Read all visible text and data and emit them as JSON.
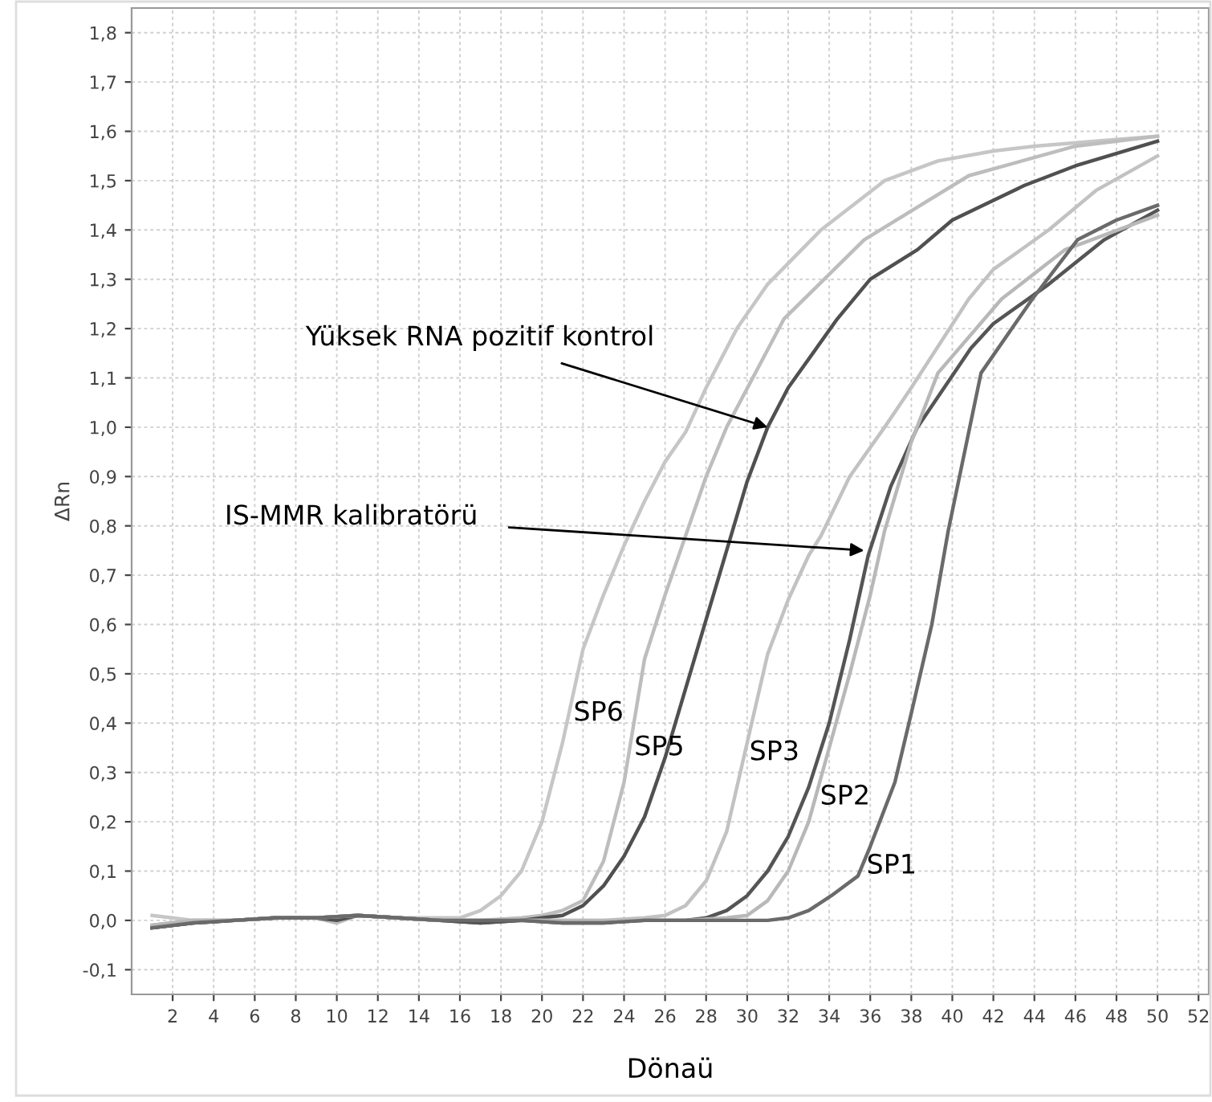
{
  "chart_data": {
    "type": "line",
    "xlabel": "Dönaü",
    "ylabel": "ΔRn",
    "xlim": [
      0,
      52.5
    ],
    "ylim": [
      -0.15,
      1.85
    ],
    "xticks": [
      2,
      4,
      6,
      8,
      10,
      12,
      14,
      16,
      18,
      20,
      22,
      24,
      26,
      28,
      30,
      32,
      34,
      36,
      38,
      40,
      42,
      44,
      46,
      48,
      50,
      52
    ],
    "yticks": [
      {
        "value": -0.1,
        "label": "-0,1"
      },
      {
        "value": 0,
        "label": "0,0"
      },
      {
        "value": 0.1,
        "label": "0,1"
      },
      {
        "value": 0.2,
        "label": "0,2"
      },
      {
        "value": 0.3,
        "label": "0,3"
      },
      {
        "value": 0.4,
        "label": "0,4"
      },
      {
        "value": 0.5,
        "label": "0,5"
      },
      {
        "value": 0.6,
        "label": "0,6"
      },
      {
        "value": 0.7,
        "label": "0,7"
      },
      {
        "value": 0.8,
        "label": "0,8"
      },
      {
        "value": 0.9,
        "label": "0,9"
      },
      {
        "value": 1.0,
        "label": "1,0"
      },
      {
        "value": 1.1,
        "label": "1,1"
      },
      {
        "value": 1.2,
        "label": "1,2"
      },
      {
        "value": 1.3,
        "label": "1,3"
      },
      {
        "value": 1.4,
        "label": "1,4"
      },
      {
        "value": 1.5,
        "label": "1,5"
      },
      {
        "value": 1.6,
        "label": "1,6"
      },
      {
        "value": 1.7,
        "label": "1,7"
      },
      {
        "value": 1.8,
        "label": "1,8"
      }
    ],
    "grid": true,
    "legend": false,
    "marker": "none",
    "line_style": "solid",
    "series": [
      {
        "name": "SP6",
        "color": "#c6c6c6",
        "x": [
          1,
          3,
          5,
          7,
          9,
          10,
          11,
          13,
          15,
          16,
          17,
          18,
          19,
          20,
          21,
          22,
          23,
          24,
          25,
          26,
          27,
          28,
          29.5,
          31,
          33.6,
          36.7,
          39.3,
          42,
          44,
          47,
          50
        ],
        "values": [
          0.01,
          0,
          0,
          0.005,
          0.005,
          -0.005,
          0.01,
          0.005,
          0.005,
          0.005,
          0.02,
          0.05,
          0.1,
          0.2,
          0.36,
          0.55,
          0.66,
          0.76,
          0.85,
          0.93,
          0.99,
          1.08,
          1.2,
          1.29,
          1.4,
          1.5,
          1.54,
          1.56,
          1.57,
          1.58,
          1.59
        ]
      },
      {
        "name": "SP5",
        "color": "#bdbdbd",
        "x": [
          1,
          3,
          5,
          7,
          9,
          10,
          11,
          13,
          15,
          17,
          19,
          20,
          21,
          22,
          23,
          24,
          25,
          26,
          27,
          28,
          29,
          31.8,
          35.7,
          40.8,
          46,
          50
        ],
        "values": [
          -0.01,
          0,
          0,
          0.005,
          0.005,
          -0.005,
          0.01,
          0.005,
          0,
          0,
          0.005,
          0.01,
          0.02,
          0.04,
          0.12,
          0.28,
          0.53,
          0.66,
          0.78,
          0.9,
          1.0,
          1.22,
          1.38,
          1.51,
          1.57,
          1.59
        ]
      },
      {
        "color": "#505050",
        "x": [
          1,
          3,
          5,
          7,
          9,
          10,
          11,
          13,
          15,
          17,
          19,
          20,
          21,
          22,
          23,
          24,
          25,
          26,
          27,
          28,
          29,
          30,
          31,
          32,
          34.4,
          36,
          38.3,
          40,
          43.5,
          46,
          50
        ],
        "values": [
          -0.015,
          -0.005,
          0,
          0.005,
          0.005,
          0,
          0.01,
          0.005,
          0,
          -0.005,
          0,
          0.005,
          0.01,
          0.03,
          0.07,
          0.13,
          0.21,
          0.33,
          0.47,
          0.61,
          0.75,
          0.89,
          1.0,
          1.08,
          1.22,
          1.3,
          1.36,
          1.42,
          1.49,
          1.53,
          1.58
        ]
      },
      {
        "name": "SP3",
        "color": "#c2c2c2",
        "x": [
          1,
          3,
          5,
          7,
          9,
          11,
          13,
          15,
          17,
          19,
          21,
          23,
          25,
          26,
          27,
          28,
          29,
          30,
          31,
          32,
          33,
          33.6,
          35,
          36.7,
          38,
          40.8,
          42,
          44.7,
          47,
          50
        ],
        "values": [
          -0.01,
          0,
          0,
          0.005,
          0.005,
          0.01,
          0.005,
          0,
          0,
          0,
          0,
          0,
          0.005,
          0.01,
          0.03,
          0.08,
          0.18,
          0.36,
          0.54,
          0.65,
          0.74,
          0.78,
          0.9,
          1.0,
          1.08,
          1.26,
          1.32,
          1.4,
          1.48,
          1.55
        ]
      },
      {
        "color": "#555555",
        "x": [
          1,
          3,
          5,
          7,
          9,
          11,
          13,
          15,
          17,
          19,
          21,
          23,
          25,
          27,
          28,
          29,
          30,
          31,
          32,
          33,
          34,
          35,
          35.9,
          37,
          38.3,
          40.9,
          42,
          44.7,
          47.4,
          50
        ],
        "values": [
          -0.015,
          -0.005,
          0,
          0.005,
          0.005,
          0.01,
          0.005,
          0,
          -0.005,
          0,
          -0.005,
          -0.005,
          0,
          0,
          0.005,
          0.02,
          0.05,
          0.1,
          0.17,
          0.27,
          0.4,
          0.57,
          0.74,
          0.88,
          1.0,
          1.16,
          1.21,
          1.29,
          1.38,
          1.44
        ]
      },
      {
        "name": "SP2",
        "color": "#b8b8b8",
        "x": [
          1,
          3,
          5,
          7,
          9,
          11,
          13,
          15,
          17,
          19,
          21,
          23,
          25,
          27,
          29,
          30,
          31,
          32,
          33,
          34,
          35,
          36,
          36.7,
          38,
          39.3,
          42.4,
          45.5,
          50
        ],
        "values": [
          -0.01,
          0,
          0,
          0.005,
          0.005,
          0.01,
          0.005,
          0,
          0,
          0,
          0,
          0,
          0,
          0,
          0.005,
          0.01,
          0.04,
          0.1,
          0.2,
          0.35,
          0.5,
          0.66,
          0.79,
          0.97,
          1.11,
          1.26,
          1.36,
          1.43
        ]
      },
      {
        "name": "SP1",
        "color": "#6a6a6a",
        "x": [
          1,
          3,
          5,
          7,
          9,
          11,
          13,
          15,
          17,
          19,
          21,
          23,
          25,
          27,
          29,
          31,
          32,
          33,
          34.1,
          35.4,
          36,
          37.2,
          38,
          39,
          39.8,
          41.4,
          43.9,
          46.1,
          48,
          50
        ],
        "values": [
          -0.015,
          -0.005,
          0,
          0.005,
          0.005,
          0.01,
          0.005,
          0,
          0,
          0,
          -0.005,
          -0.005,
          0,
          0,
          0,
          0,
          0.005,
          0.02,
          0.05,
          0.09,
          0.15,
          0.28,
          0.42,
          0.6,
          0.79,
          1.11,
          1.26,
          1.38,
          1.42,
          1.45
        ]
      }
    ],
    "annotations": [
      {
        "text": "Yüksek RNA pozitif kontrol",
        "x": 31,
        "y": 1.0
      },
      {
        "text": "IS-MMR kalibratörü",
        "x": 35.7,
        "y": 0.75
      }
    ]
  }
}
